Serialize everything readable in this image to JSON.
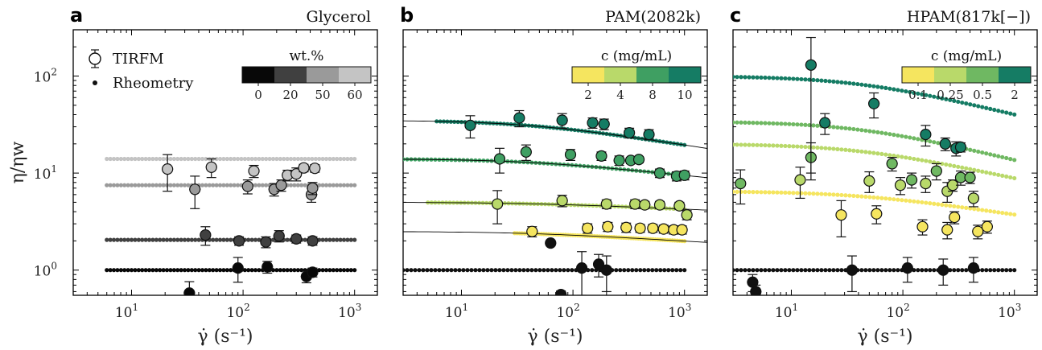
{
  "chart_data": [
    {
      "panel": "a",
      "type": "scatter",
      "title": "Glycerol",
      "xlabel": "γ̇ (s⁻¹)",
      "ylabel": "η/ηw",
      "xscale": "log",
      "yscale": "log",
      "xlim": [
        3,
        1600
      ],
      "ylim": [
        0.55,
        300
      ],
      "xticks": [
        {
          "v": 10,
          "t": "10"
        },
        {
          "v": 100,
          "t": "10"
        },
        {
          "v": 1000,
          "t": "10"
        }
      ],
      "xtick_exp": [
        "1",
        "2",
        "3"
      ],
      "yticks": [
        {
          "v": 1,
          "t": "10"
        },
        {
          "v": 10,
          "t": "10"
        },
        {
          "v": 100,
          "t": "10"
        }
      ],
      "ytick_exp": [
        "0",
        "1",
        "2"
      ],
      "legend": {
        "position": "top-left",
        "entries": [
          "TIRFM",
          "Rheometry"
        ]
      },
      "colorbar": {
        "title": "wt.%",
        "labels": [
          "0",
          "20",
          "50",
          "60"
        ],
        "colors": [
          "#080808",
          "#404040",
          "#9a9a9a",
          "#c4c4c4"
        ]
      },
      "series": [
        {
          "color": "#080808",
          "rheo_level": 1.0,
          "rheo_x": [
            6,
            1000
          ],
          "tirfm": [
            {
              "x": 33,
              "y": 0.58,
              "e": 0.18
            },
            {
              "x": 90,
              "y": 1.05,
              "e": 0.3
            },
            {
              "x": 165,
              "y": 1.08,
              "e": 0.15
            },
            {
              "x": 370,
              "y": 0.86,
              "e": 0.12
            },
            {
              "x": 420,
              "y": 0.95,
              "e": 0.1
            }
          ]
        },
        {
          "color": "#404040",
          "rheo_level": 2.05,
          "rheo_x": [
            6,
            1000
          ],
          "tirfm": [
            {
              "x": 46,
              "y": 2.3,
              "e": 0.5
            },
            {
              "x": 92,
              "y": 2.0,
              "e": 0.2
            },
            {
              "x": 160,
              "y": 1.95,
              "e": 0.25
            },
            {
              "x": 210,
              "y": 2.25,
              "e": 0.3
            },
            {
              "x": 300,
              "y": 2.1,
              "e": 0.2
            },
            {
              "x": 420,
              "y": 2.0,
              "e": 0.2
            }
          ]
        },
        {
          "color": "#9a9a9a",
          "rheo_level": 7.5,
          "rheo_x": [
            6,
            1000
          ],
          "tirfm": [
            {
              "x": 37,
              "y": 6.8,
              "e": 2.5
            },
            {
              "x": 110,
              "y": 7.3,
              "e": 1.2
            },
            {
              "x": 190,
              "y": 6.8,
              "e": 1
            },
            {
              "x": 220,
              "y": 7.5,
              "e": 1
            },
            {
              "x": 410,
              "y": 6.0,
              "e": 1
            },
            {
              "x": 420,
              "y": 7.0,
              "e": 1
            }
          ]
        },
        {
          "color": "#c4c4c4",
          "rheo_level": 14.0,
          "rheo_x": [
            6,
            1000
          ],
          "tirfm": [
            {
              "x": 21,
              "y": 11.0,
              "e": 4.5
            },
            {
              "x": 52,
              "y": 11.5,
              "e": 2.5
            },
            {
              "x": 125,
              "y": 10.5,
              "e": 1.5
            },
            {
              "x": 250,
              "y": 9.5,
              "e": 1.2
            },
            {
              "x": 300,
              "y": 9.8,
              "e": 1.5
            },
            {
              "x": 350,
              "y": 11.3,
              "e": 1
            },
            {
              "x": 440,
              "y": 11.2,
              "e": 1
            }
          ]
        }
      ]
    },
    {
      "panel": "b",
      "type": "scatter",
      "title": "PAM(2082k)",
      "xlabel": "γ̇ (s⁻¹)",
      "ylabel": "η/ηw",
      "xscale": "log",
      "yscale": "log",
      "xlim": [
        3,
        1600
      ],
      "ylim": [
        0.55,
        300
      ],
      "xticks": [
        {
          "v": 10,
          "t": "10"
        },
        {
          "v": 100,
          "t": "10"
        },
        {
          "v": 1000,
          "t": "10"
        }
      ],
      "xtick_exp": [
        "1",
        "2",
        "3"
      ],
      "colorbar": {
        "title": "c (mg/mL)",
        "labels": [
          "2",
          "4",
          "8",
          "10"
        ],
        "colors": [
          "#f5e55f",
          "#b9d96a",
          "#3f9f62",
          "#157c64"
        ]
      },
      "series": [
        {
          "color": "#111111",
          "rheo_level": 1.0,
          "shear_thin": 0,
          "rheo_x": [
            3,
            1000
          ],
          "tirfm": [
            {
              "x": 63,
              "y": 1.9,
              "e": 0.1
            },
            {
              "x": 78,
              "y": 0.56,
              "e": 0.05
            },
            {
              "x": 120,
              "y": 1.05,
              "e": 0.5
            },
            {
              "x": 200,
              "y": 1.0,
              "e": 0.4
            },
            {
              "x": 170,
              "y": 1.15,
              "e": 0.3
            }
          ]
        },
        {
          "color": "#f5e55f",
          "rheo_level": 2.5,
          "shear_thin": 0.07,
          "rheo_x": [
            30,
            1000
          ],
          "tirfm": [
            {
              "x": 43,
              "y": 2.5,
              "e": 0.3
            },
            {
              "x": 135,
              "y": 2.7,
              "e": 0.3
            },
            {
              "x": 205,
              "y": 2.8,
              "e": 0.3
            },
            {
              "x": 300,
              "y": 2.75,
              "e": 0.3
            },
            {
              "x": 400,
              "y": 2.7,
              "e": 0.25
            },
            {
              "x": 520,
              "y": 2.7,
              "e": 0.25
            },
            {
              "x": 650,
              "y": 2.65,
              "e": 0.25
            },
            {
              "x": 800,
              "y": 2.6,
              "e": 0.25
            },
            {
              "x": 950,
              "y": 2.6,
              "e": 0.25
            }
          ]
        },
        {
          "color": "#b9d96a",
          "rheo_level": 5.0,
          "shear_thin": 0.05,
          "rheo_x": [
            5,
            1000
          ],
          "tirfm": [
            {
              "x": 21,
              "y": 4.8,
              "e": 1.8
            },
            {
              "x": 80,
              "y": 5.2,
              "e": 0.7
            },
            {
              "x": 200,
              "y": 4.8,
              "e": 0.5
            },
            {
              "x": 360,
              "y": 4.8,
              "e": 0.5
            },
            {
              "x": 440,
              "y": 4.7,
              "e": 0.4
            },
            {
              "x": 600,
              "y": 4.7,
              "e": 0.4
            },
            {
              "x": 900,
              "y": 4.6,
              "e": 0.4
            },
            {
              "x": 1050,
              "y": 3.7,
              "e": 0.4
            }
          ]
        },
        {
          "color": "#3f9f62",
          "rheo_level": 14.0,
          "shear_thin": 0.12,
          "rheo_x": [
            3,
            1000
          ],
          "tirfm": [
            {
              "x": 22,
              "y": 14.0,
              "e": 4
            },
            {
              "x": 38,
              "y": 16.5,
              "e": 3
            },
            {
              "x": 95,
              "y": 15.5,
              "e": 2
            },
            {
              "x": 180,
              "y": 15.0,
              "e": 1.5
            },
            {
              "x": 260,
              "y": 13.5,
              "e": 1.5
            },
            {
              "x": 330,
              "y": 13.5,
              "e": 1
            },
            {
              "x": 390,
              "y": 13.8,
              "e": 1
            },
            {
              "x": 600,
              "y": 10.0,
              "e": 1
            },
            {
              "x": 850,
              "y": 9.3,
              "e": 1
            },
            {
              "x": 1000,
              "y": 9.5,
              "e": 1
            }
          ]
        },
        {
          "color": "#157c64",
          "rheo_level": 35.0,
          "shear_thin": 0.18,
          "rheo_x": [
            6,
            1000
          ],
          "tirfm": [
            {
              "x": 12,
              "y": 31.0,
              "e": 8
            },
            {
              "x": 33,
              "y": 37.0,
              "e": 7
            },
            {
              "x": 80,
              "y": 35.0,
              "e": 6
            },
            {
              "x": 150,
              "y": 33.0,
              "e": 4
            },
            {
              "x": 190,
              "y": 32.0,
              "e": 4
            },
            {
              "x": 320,
              "y": 26.0,
              "e": 3
            },
            {
              "x": 480,
              "y": 25.0,
              "e": 3
            }
          ]
        }
      ]
    },
    {
      "panel": "c",
      "type": "scatter",
      "title": "HPAM(817k[−])",
      "xlabel": "γ̇ (s⁻¹)",
      "ylabel": "η/ηw",
      "xscale": "log",
      "yscale": "log",
      "xlim": [
        3,
        1600
      ],
      "ylim": [
        0.55,
        300
      ],
      "xticks": [
        {
          "v": 10,
          "t": "10"
        },
        {
          "v": 100,
          "t": "10"
        },
        {
          "v": 1000,
          "t": "10"
        }
      ],
      "xtick_exp": [
        "1",
        "2",
        "3"
      ],
      "colorbar": {
        "title": "c (mg/mL)",
        "labels": [
          "0.1",
          "0.25",
          "0.5",
          "2"
        ],
        "colors": [
          "#f5e55f",
          "#b9d96a",
          "#6fb862",
          "#157c64"
        ]
      },
      "series": [
        {
          "color": "#111111",
          "rheo_level": 1.0,
          "shear_thin": 0,
          "rheo_x": [
            3,
            1000
          ],
          "tirfm": [
            {
              "x": 4.5,
              "y": 0.75,
              "e": 0.15
            },
            {
              "x": 4.8,
              "y": 0.6,
              "e": 0.1
            },
            {
              "x": 35,
              "y": 1.0,
              "e": 0.4
            },
            {
              "x": 110,
              "y": 1.05,
              "e": 0.3
            },
            {
              "x": 230,
              "y": 1.0,
              "e": 0.3
            },
            {
              "x": 430,
              "y": 1.05,
              "e": 0.3
            }
          ]
        },
        {
          "color": "#f5e55f",
          "rheo_level": 6.5,
          "shear_thin": 0.17,
          "rheo_x": [
            3,
            1000
          ],
          "tirfm": [
            {
              "x": 28,
              "y": 3.7,
              "e": 1.5
            },
            {
              "x": 58,
              "y": 3.8,
              "e": 0.8
            },
            {
              "x": 150,
              "y": 2.8,
              "e": 0.5
            },
            {
              "x": 250,
              "y": 2.6,
              "e": 0.5
            },
            {
              "x": 290,
              "y": 3.5,
              "e": 0.5
            },
            {
              "x": 470,
              "y": 2.5,
              "e": 0.4
            },
            {
              "x": 570,
              "y": 2.8,
              "e": 0.4
            }
          ]
        },
        {
          "color": "#b9d96a",
          "rheo_level": 20.0,
          "shear_thin": 0.25,
          "rheo_x": [
            3,
            1000
          ],
          "tirfm": [
            {
              "x": 12,
              "y": 8.5,
              "e": 3
            },
            {
              "x": 50,
              "y": 8.3,
              "e": 2
            },
            {
              "x": 95,
              "y": 7.5,
              "e": 1.5
            },
            {
              "x": 160,
              "y": 7.8,
              "e": 1.5
            },
            {
              "x": 250,
              "y": 6.5,
              "e": 1.5
            },
            {
              "x": 280,
              "y": 7.5,
              "e": 1
            },
            {
              "x": 430,
              "y": 5.5,
              "e": 1
            }
          ]
        },
        {
          "color": "#6fb862",
          "rheo_level": 34.0,
          "shear_thin": 0.28,
          "rheo_x": [
            3,
            1000
          ],
          "tirfm": [
            {
              "x": 3.5,
              "y": 7.8,
              "e": 3
            },
            {
              "x": 15,
              "y": 14.5,
              "e": 6
            },
            {
              "x": 80,
              "y": 12.5,
              "e": 2
            },
            {
              "x": 120,
              "y": 8.5,
              "e": 1.5
            },
            {
              "x": 200,
              "y": 10.5,
              "e": 2
            },
            {
              "x": 330,
              "y": 9.0,
              "e": 1.5
            },
            {
              "x": 400,
              "y": 9.0,
              "e": 1.2
            }
          ]
        },
        {
          "color": "#157c64",
          "rheo_level": 100.0,
          "shear_thin": 0.28,
          "rheo_x": [
            3,
            1000
          ],
          "tirfm": [
            {
              "x": 15,
              "y": 130.0,
              "e": 120
            },
            {
              "x": 20,
              "y": 33.0,
              "e": 8
            },
            {
              "x": 55,
              "y": 52.0,
              "e": 15
            },
            {
              "x": 160,
              "y": 25.0,
              "e": 6
            },
            {
              "x": 240,
              "y": 20.0,
              "e": 3
            },
            {
              "x": 300,
              "y": 18.0,
              "e": 3
            },
            {
              "x": 330,
              "y": 18.5,
              "e": 2
            }
          ]
        }
      ]
    }
  ]
}
